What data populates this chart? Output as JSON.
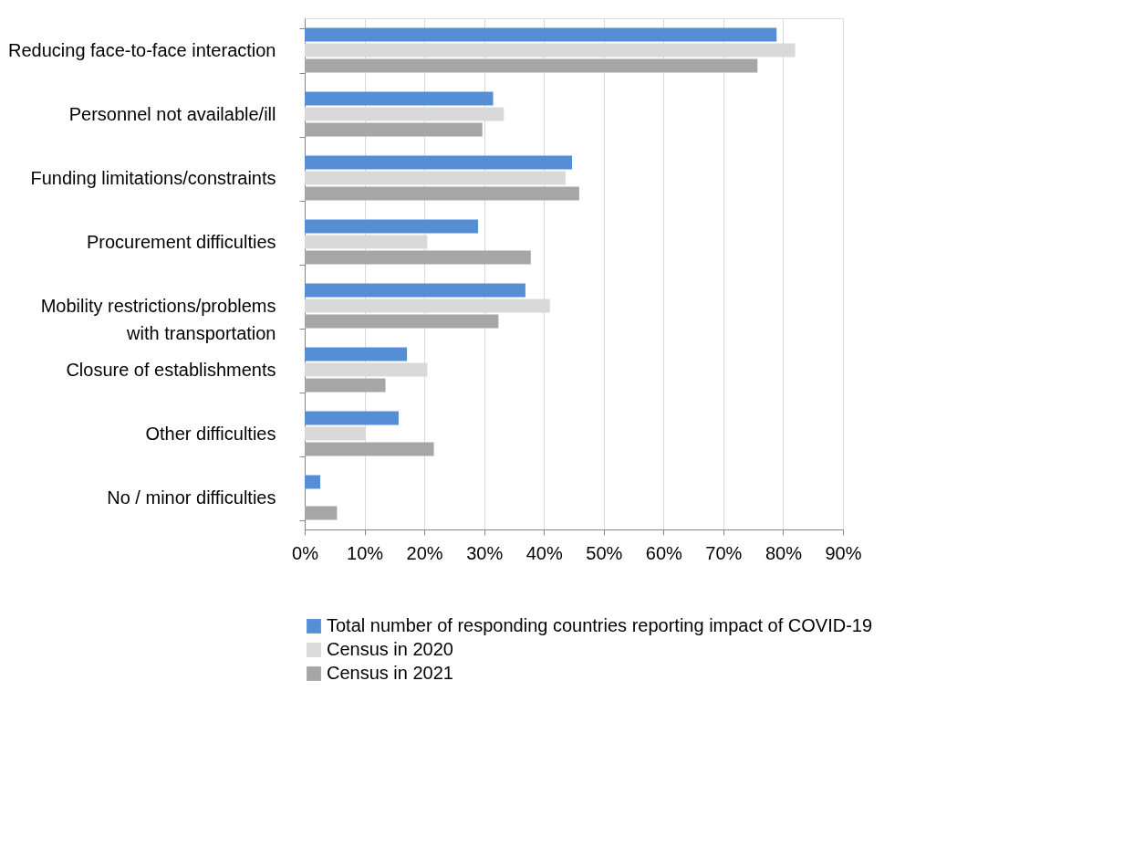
{
  "chart_data": {
    "type": "bar",
    "orientation": "horizontal",
    "categories": [
      "Reducing face-to-face interaction",
      "Personnel not available/ill",
      "Funding limitations/constraints",
      "Procurement difficulties",
      "Mobility restrictions/problems with transportation",
      "Closure of establishments",
      "Other difficulties",
      "No / minor difficulties"
    ],
    "series": [
      {
        "name": "Total number of responding countries reporting impact of COVID-19",
        "color": "#558ed5",
        "values": [
          78.9,
          31.5,
          44.7,
          29.0,
          36.9,
          17.1,
          15.7,
          2.6
        ]
      },
      {
        "name": "Census in 2020",
        "color": "#d9d9d9",
        "values": [
          82.0,
          33.3,
          43.6,
          20.5,
          41.0,
          20.5,
          10.2,
          null
        ]
      },
      {
        "name": "Census in 2021",
        "color": "#a6a6a6",
        "values": [
          75.7,
          29.7,
          45.9,
          37.8,
          32.4,
          13.5,
          21.6,
          5.4
        ]
      }
    ],
    "xlim": [
      0,
      90
    ],
    "xticks": [
      {
        "value": 0,
        "label": "0%"
      },
      {
        "value": 10,
        "label": "10%"
      },
      {
        "value": 20,
        "label": "20%"
      },
      {
        "value": 30,
        "label": "30%"
      },
      {
        "value": 40,
        "label": "40%"
      },
      {
        "value": 50,
        "label": "50%"
      },
      {
        "value": 60,
        "label": "60%"
      },
      {
        "value": 70,
        "label": "70%"
      },
      {
        "value": 80,
        "label": "80%"
      },
      {
        "value": 90,
        "label": "90%"
      }
    ],
    "grid": "x",
    "legend": "bottom"
  }
}
